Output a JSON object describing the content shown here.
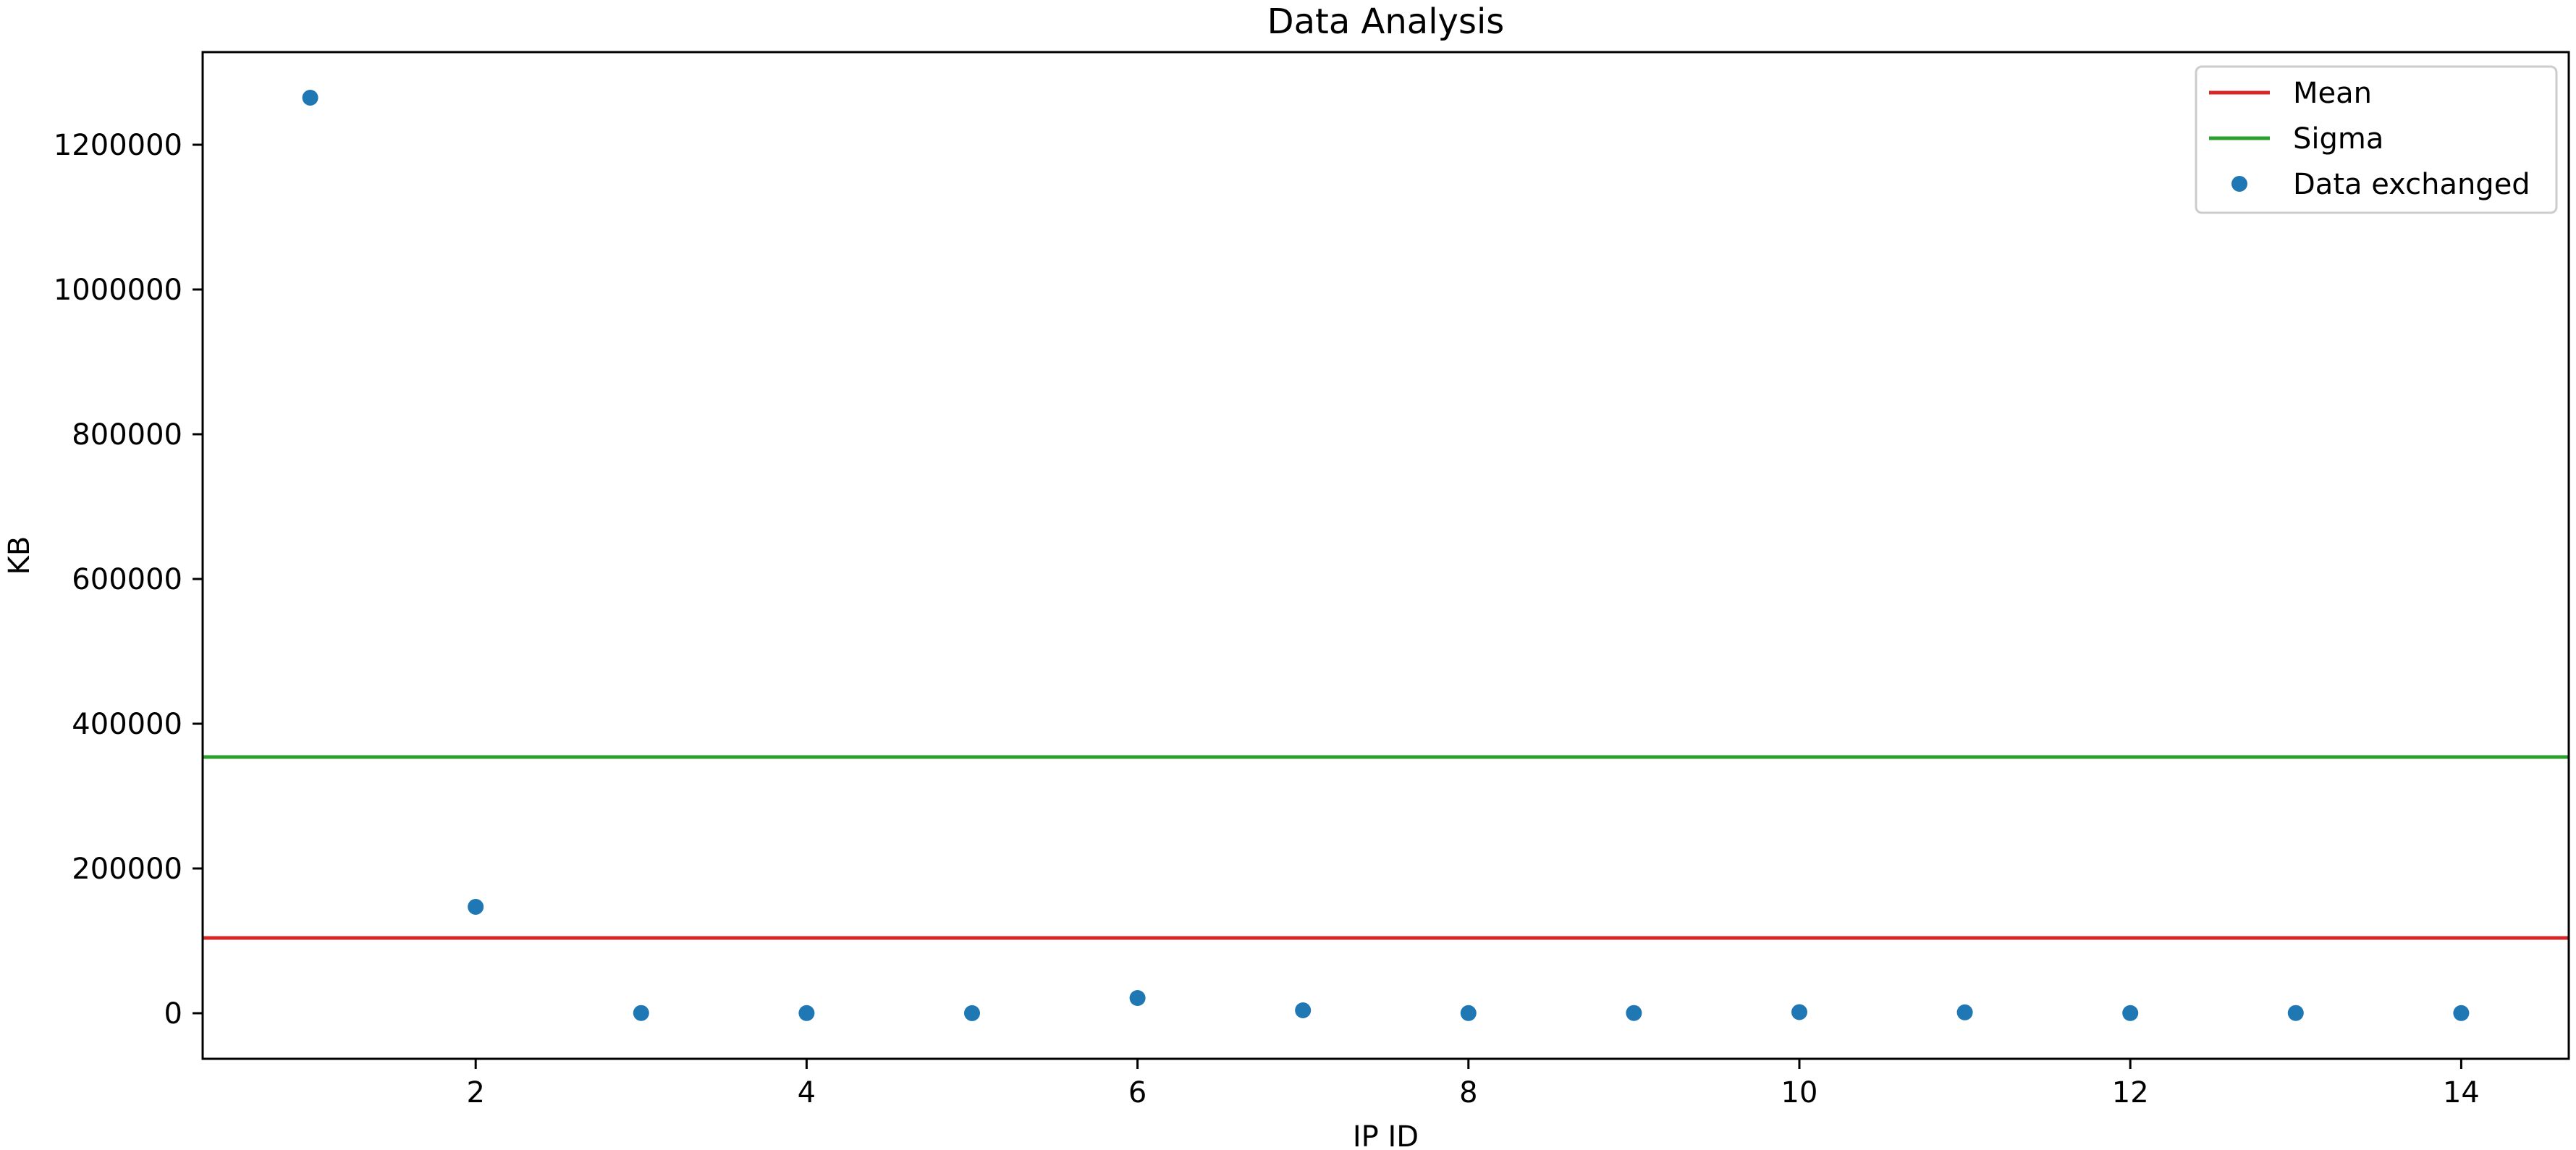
{
  "chart_data": {
    "type": "scatter",
    "title": "Data Analysis",
    "xlabel": "IP ID",
    "ylabel": "KB",
    "xlim": [
      0.35,
      14.65
    ],
    "ylim": [
      -63000,
      1328000
    ],
    "xticks": [
      2,
      4,
      6,
      8,
      10,
      12,
      14
    ],
    "yticks": [
      0,
      200000,
      400000,
      600000,
      800000,
      1000000,
      1200000
    ],
    "grid": false,
    "legend_position": "top-right",
    "series": [
      {
        "name": "Data exchanged",
        "kind": "scatter",
        "color": "#1f77b4",
        "x": [
          1,
          2,
          3,
          4,
          5,
          6,
          7,
          8,
          9,
          10,
          11,
          12,
          13,
          14
        ],
        "y": [
          1265000,
          147000,
          300,
          200,
          100,
          21000,
          4000,
          200,
          300,
          1500,
          1200,
          200,
          300,
          200
        ]
      },
      {
        "name": "Mean",
        "kind": "hline",
        "color": "#d62728",
        "y": 104000
      },
      {
        "name": "Sigma",
        "kind": "hline",
        "color": "#2ca02c",
        "y": 354000
      }
    ],
    "legend_order": [
      "Mean",
      "Sigma",
      "Data exchanged"
    ]
  }
}
